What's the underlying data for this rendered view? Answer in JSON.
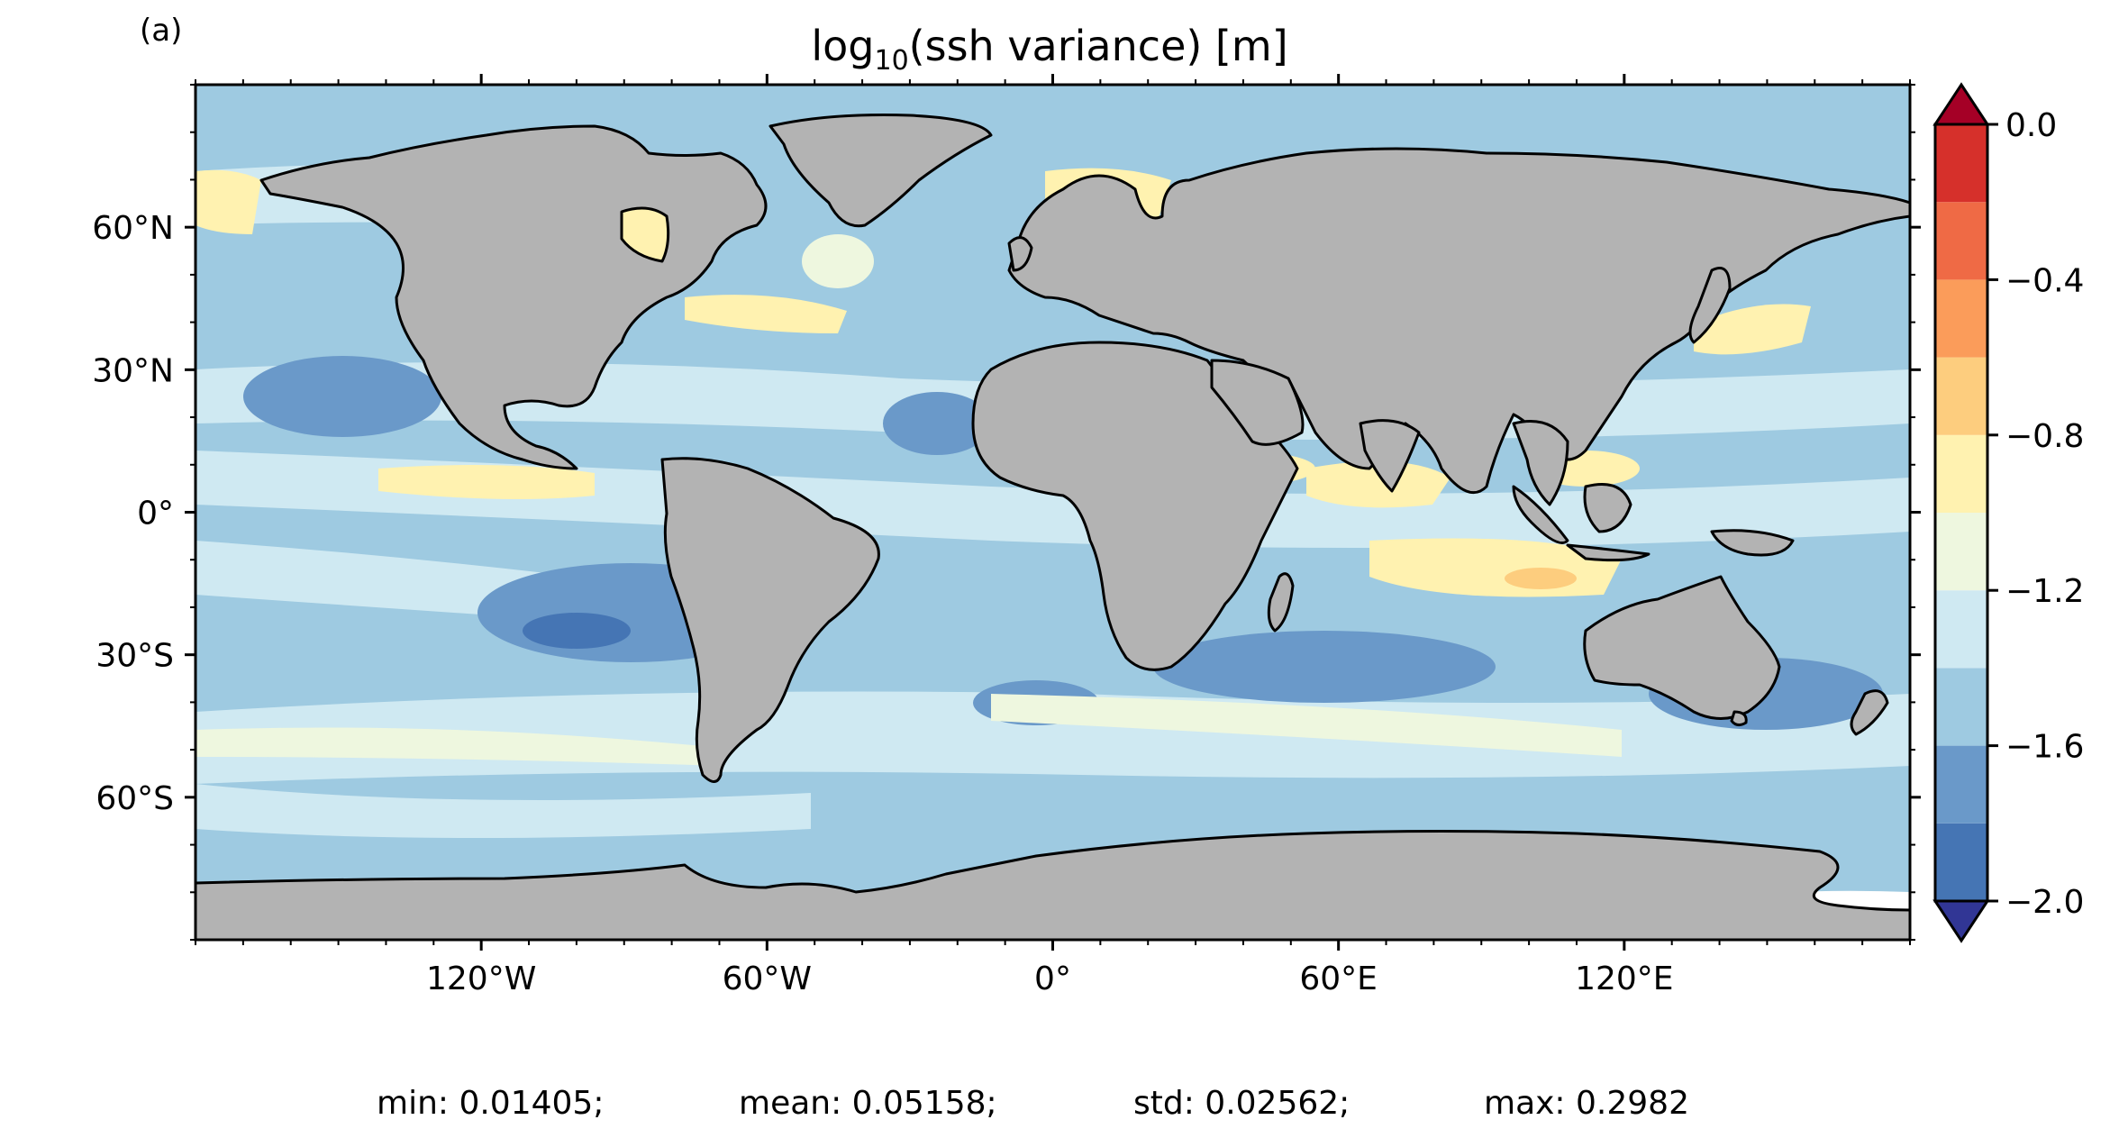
{
  "panel_label": "(a)",
  "title": {
    "prefix": "log",
    "subscript": "10",
    "suffix": "(ssh variance) [m]"
  },
  "axes": {
    "x_ticks": [
      "120°W",
      "60°W",
      "0°",
      "60°E",
      "120°E"
    ],
    "y_ticks": [
      "60°N",
      "30°N",
      "0°",
      "30°S",
      "60°S"
    ]
  },
  "colorbar": {
    "tick_labels": [
      "0.0",
      "−0.4",
      "−0.8",
      "−1.2",
      "−1.6",
      "−2.0"
    ],
    "levels": [
      -2.0,
      -1.8,
      -1.6,
      -1.4,
      -1.2,
      -1.0,
      -0.8,
      -0.6,
      -0.4,
      -0.2,
      0.0
    ],
    "colors_low_to_high": [
      "#4575b4",
      "#6a99c9",
      "#9ecae1",
      "#cfe9f2",
      "#eef7df",
      "#fff2b0",
      "#fdcd7e",
      "#fb9c5a",
      "#ef6a45",
      "#d6302b"
    ],
    "under_color": "#313695",
    "over_color": "#a50026",
    "extend": "both"
  },
  "land_color": "#b3b3b3",
  "stats": {
    "min": "min: 0.01405;",
    "mean": "mean: 0.05158;",
    "std": "std: 0.02562;",
    "max": "max: 0.2982"
  },
  "chart_data": {
    "type": "heatmap",
    "title": "log10(ssh variance) [m]",
    "projection": "PlateCarree",
    "xlim": [
      -180,
      180
    ],
    "ylim": [
      -90,
      90
    ],
    "x_tick_values": [
      -120,
      -60,
      0,
      60,
      120
    ],
    "y_tick_values": [
      60,
      30,
      0,
      -30,
      -60
    ],
    "color_range": [
      -2.0,
      0.0
    ],
    "colorbar_ticks": [
      0.0,
      -0.4,
      -0.8,
      -1.2,
      -1.6,
      -2.0
    ],
    "summary": {
      "min": 0.01405,
      "mean": 0.05158,
      "std": 0.02562,
      "max": 0.2982
    }
  }
}
